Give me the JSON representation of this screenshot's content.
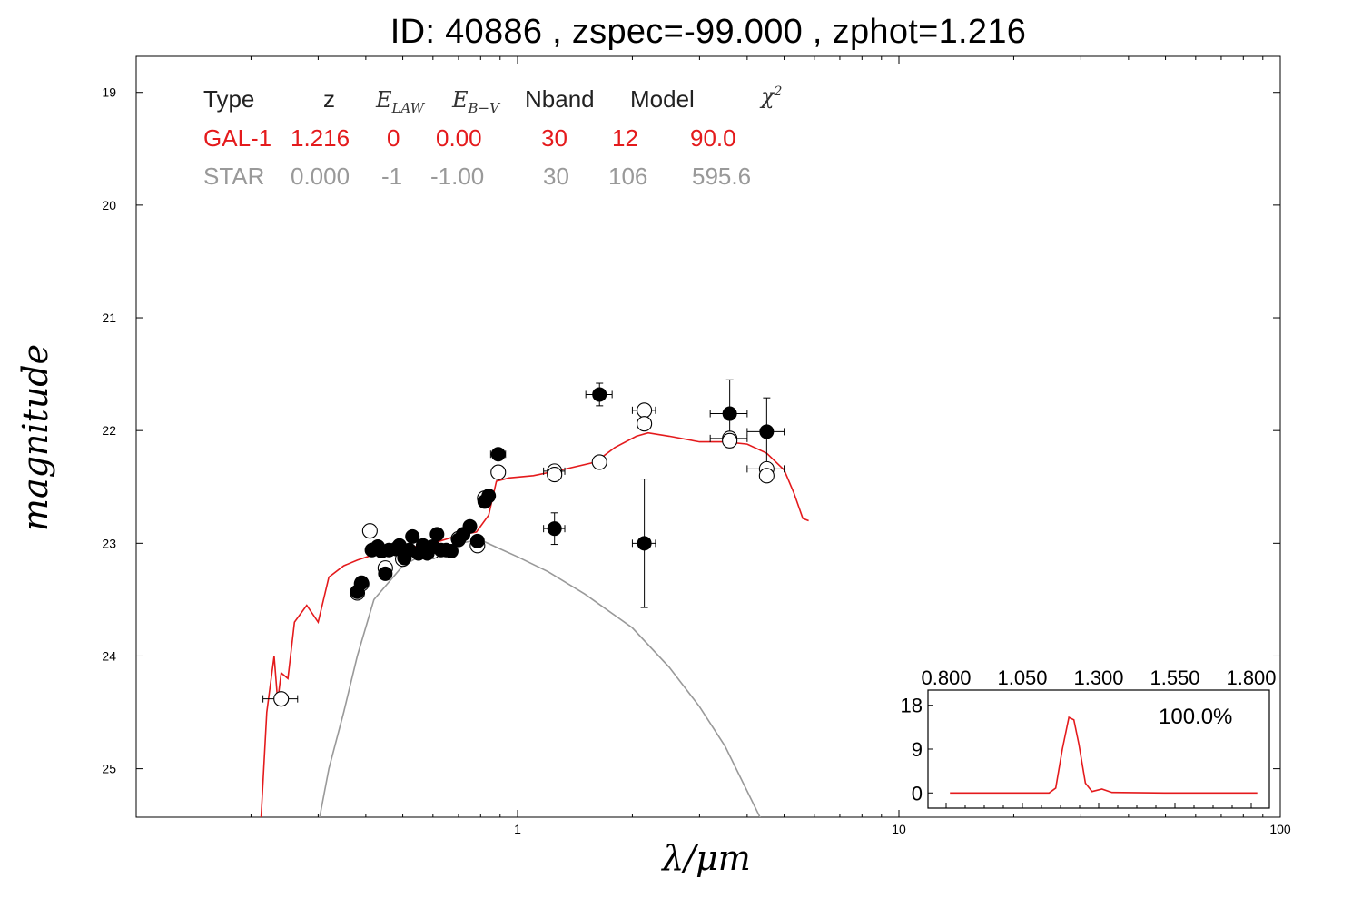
{
  "title": "ID:  40886 , zspec=-99.000 , zphot=1.216",
  "colors": {
    "galaxy": "#e41a1c",
    "star": "#999999",
    "axes": "#000000"
  },
  "table": {
    "headers": [
      "Type",
      "z",
      "E_LAW",
      "E_B-V",
      "Nband",
      "Model",
      "χ²"
    ],
    "rows": [
      {
        "name": "galaxy",
        "values": [
          "GAL-1",
          "1.216",
          "0",
          "0.00",
          "30",
          "12",
          "90.0"
        ]
      },
      {
        "name": "star",
        "values": [
          "STAR",
          "0.000",
          "-1",
          "-1.00",
          "30",
          "106",
          "595.6"
        ]
      }
    ]
  },
  "chart_data": [
    {
      "type": "scatter",
      "title": "ID:  40886 , zspec=-99.000 , zphot=1.216",
      "xlabel": "λ/μm",
      "ylabel": "magnitude",
      "x_scale": "log",
      "xlim": [
        0.1,
        100
      ],
      "ylim": [
        25.43,
        18.68
      ],
      "y_inverted": true,
      "x_ticks": [
        "1",
        "10",
        "100"
      ],
      "y_ticks": [
        "19",
        "20",
        "21",
        "22",
        "23",
        "24",
        "25"
      ],
      "grid": false,
      "series": [
        {
          "style": "filled-points",
          "points": [
            {
              "x": 0.38,
              "y": 23.43,
              "xerr": 0.012,
              "yerr": 0.03
            },
            {
              "x": 0.39,
              "y": 23.35,
              "xerr": 0.012,
              "yerr": 0.03
            },
            {
              "x": 0.415,
              "y": 23.06,
              "xerr": 0.012,
              "yerr": 0.03
            },
            {
              "x": 0.43,
              "y": 23.03
            },
            {
              "x": 0.44,
              "y": 23.07
            },
            {
              "x": 0.45,
              "y": 23.27
            },
            {
              "x": 0.46,
              "y": 23.06
            },
            {
              "x": 0.48,
              "y": 23.05
            },
            {
              "x": 0.49,
              "y": 23.02
            },
            {
              "x": 0.505,
              "y": 23.13
            },
            {
              "x": 0.52,
              "y": 23.06
            },
            {
              "x": 0.53,
              "y": 22.94
            },
            {
              "x": 0.55,
              "y": 23.09
            },
            {
              "x": 0.565,
              "y": 23.02
            },
            {
              "x": 0.58,
              "y": 23.09
            },
            {
              "x": 0.6,
              "y": 23.03
            },
            {
              "x": 0.615,
              "y": 22.92
            },
            {
              "x": 0.63,
              "y": 23.06
            },
            {
              "x": 0.65,
              "y": 23.06
            },
            {
              "x": 0.67,
              "y": 23.07
            },
            {
              "x": 0.7,
              "y": 22.97
            },
            {
              "x": 0.72,
              "y": 22.92
            },
            {
              "x": 0.75,
              "y": 22.85
            },
            {
              "x": 0.785,
              "y": 22.98
            },
            {
              "x": 0.82,
              "y": 22.63
            },
            {
              "x": 0.84,
              "y": 22.58
            },
            {
              "x": 0.89,
              "y": 22.21,
              "xerr": 0.04,
              "yerr": 0.05
            },
            {
              "x": 1.25,
              "y": 22.87,
              "xerr": 0.08,
              "yerr": 0.14
            },
            {
              "x": 1.64,
              "y": 21.68,
              "xerr": 0.13,
              "yerr": 0.1
            },
            {
              "x": 2.15,
              "y": 23.0,
              "xerr": 0.15,
              "yerr": 0.57
            },
            {
              "x": 3.6,
              "y": 21.85,
              "xerr": 0.4,
              "yerr": 0.3
            },
            {
              "x": 4.5,
              "y": 22.01,
              "xerr": 0.5,
              "yerr": 0.3
            }
          ]
        },
        {
          "style": "open-points",
          "points": [
            {
              "x": 0.24,
              "y": 24.38,
              "xerr": 0.025
            },
            {
              "x": 0.38,
              "y": 23.44
            },
            {
              "x": 0.39,
              "y": 23.36
            },
            {
              "x": 0.41,
              "y": 22.89
            },
            {
              "x": 0.45,
              "y": 23.22
            },
            {
              "x": 0.5,
              "y": 23.14
            },
            {
              "x": 0.6,
              "y": 23.07
            },
            {
              "x": 0.7,
              "y": 22.96
            },
            {
              "x": 0.785,
              "y": 23.02
            },
            {
              "x": 0.82,
              "y": 22.6
            },
            {
              "x": 0.89,
              "y": 22.37
            },
            {
              "x": 1.25,
              "y": 22.36,
              "xerr": 0.08
            },
            {
              "x": 1.25,
              "y": 22.39
            },
            {
              "x": 1.64,
              "y": 22.28
            },
            {
              "x": 2.15,
              "y": 21.82,
              "xerr": 0.15
            },
            {
              "x": 2.15,
              "y": 21.94
            },
            {
              "x": 3.6,
              "y": 22.07,
              "xerr": 0.4
            },
            {
              "x": 3.6,
              "y": 22.09
            },
            {
              "x": 4.5,
              "y": 22.34,
              "xerr": 0.5
            },
            {
              "x": 4.5,
              "y": 22.4
            }
          ]
        },
        {
          "style": "line",
          "color": "#e41a1c",
          "points": [
            [
              0.212,
              25.5
            ],
            [
              0.22,
              24.5
            ],
            [
              0.23,
              24.0
            ],
            [
              0.235,
              24.4
            ],
            [
              0.24,
              24.15
            ],
            [
              0.25,
              24.2
            ],
            [
              0.26,
              23.7
            ],
            [
              0.28,
              23.55
            ],
            [
              0.3,
              23.7
            ],
            [
              0.32,
              23.3
            ],
            [
              0.35,
              23.2
            ],
            [
              0.38,
              23.15
            ],
            [
              0.42,
              23.1
            ],
            [
              0.5,
              23.05
            ],
            [
              0.6,
              23.0
            ],
            [
              0.7,
              22.93
            ],
            [
              0.78,
              22.9
            ],
            [
              0.84,
              22.75
            ],
            [
              0.88,
              22.45
            ],
            [
              0.95,
              22.42
            ],
            [
              1.1,
              22.4
            ],
            [
              1.3,
              22.35
            ],
            [
              1.6,
              22.28
            ],
            [
              1.8,
              22.15
            ],
            [
              2.05,
              22.05
            ],
            [
              2.2,
              22.02
            ],
            [
              2.5,
              22.05
            ],
            [
              3.0,
              22.1
            ],
            [
              3.5,
              22.1
            ],
            [
              4.0,
              22.12
            ],
            [
              4.5,
              22.2
            ],
            [
              5.0,
              22.35
            ],
            [
              5.3,
              22.55
            ],
            [
              5.6,
              22.78
            ],
            [
              5.8,
              22.8
            ]
          ]
        },
        {
          "style": "line",
          "color": "#999999",
          "points": [
            [
              0.3,
              25.5
            ],
            [
              0.32,
              25.0
            ],
            [
              0.35,
              24.5
            ],
            [
              0.38,
              24.0
            ],
            [
              0.42,
              23.5
            ],
            [
              0.5,
              23.2
            ],
            [
              0.6,
              23.05
            ],
            [
              0.7,
              23.0
            ],
            [
              0.8,
              22.97
            ],
            [
              0.9,
              23.05
            ],
            [
              1.0,
              23.12
            ],
            [
              1.2,
              23.25
            ],
            [
              1.5,
              23.45
            ],
            [
              2.0,
              23.75
            ],
            [
              2.5,
              24.1
            ],
            [
              3.0,
              24.45
            ],
            [
              3.5,
              24.8
            ],
            [
              4.0,
              25.2
            ],
            [
              4.35,
              25.45
            ]
          ]
        }
      ]
    },
    {
      "type": "line",
      "title": "",
      "x_ticks": [
        "0.800",
        "1.050",
        "1.300",
        "1.550",
        "1.800"
      ],
      "y_ticks": [
        "0",
        "9",
        "18"
      ],
      "xlim": [
        0.8,
        1.8
      ],
      "ylim": [
        -2,
        20
      ],
      "annotation": "100.0%",
      "color": "#e41a1c",
      "points": [
        [
          0.85,
          0
        ],
        [
          1.05,
          0
        ],
        [
          1.15,
          0
        ],
        [
          1.17,
          1
        ],
        [
          1.19,
          9
        ],
        [
          1.21,
          15.5
        ],
        [
          1.225,
          15
        ],
        [
          1.24,
          10
        ],
        [
          1.26,
          2
        ],
        [
          1.28,
          0.3
        ],
        [
          1.31,
          0.8
        ],
        [
          1.34,
          0.1
        ],
        [
          1.5,
          0
        ],
        [
          1.7,
          0
        ],
        [
          1.78,
          0
        ]
      ]
    }
  ]
}
